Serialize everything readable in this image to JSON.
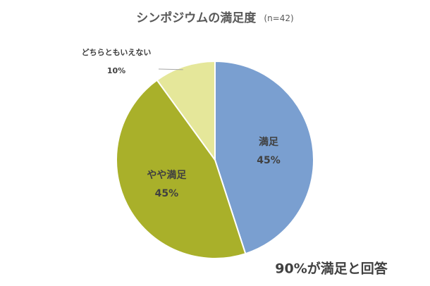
{
  "chart_data": {
    "type": "pie",
    "title": "シンポジウムの満足度",
    "subtitle": "(n=42)",
    "categories": [
      "満足",
      "やや満足",
      "どちらともいえない"
    ],
    "values": [
      45,
      45,
      10
    ],
    "value_labels": [
      "45%",
      "45%",
      "10%"
    ],
    "colors": [
      "#7a9fd0",
      "#a9b02a",
      "#e5e79a"
    ],
    "annotation": "90%が満足と回答"
  }
}
